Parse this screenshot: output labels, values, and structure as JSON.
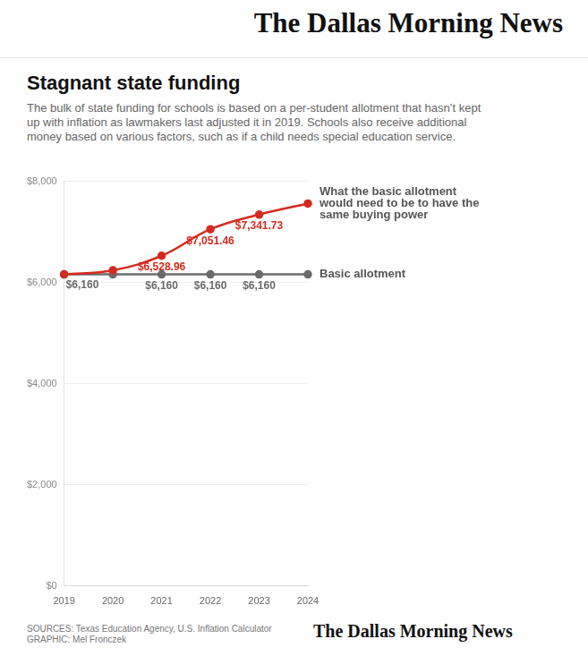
{
  "chart_data": {
    "type": "line",
    "brand": "The Dallas Morning News",
    "title": "Stagnant state funding",
    "subtitle": "The bulk of state funding for schools is based on a per-student allotment that hasn’t kept up with inflation as lawmakers last adjusted it in 2019. Schools also receive additional money based on various factors, such as if a child needs special education service.",
    "source": "SOURCES: Texas Education Agency, U.S. Inflation Calculator",
    "credit": "GRAPHIC: Mel Fronczek",
    "categories": [
      "2019",
      "2020",
      "2021",
      "2022",
      "2023",
      "2024"
    ],
    "series": [
      {
        "name": "What the basic allotment would need to be to have the same buying power",
        "color": "#d42a1f",
        "marker": "circle",
        "line_style": "solid",
        "values": [
          6160,
          6240,
          6528.96,
          7051.46,
          7341.73,
          7560
        ],
        "value_labels": [
          null,
          null,
          "$6,528.96",
          "$7,051.46",
          "$7,341.73",
          null
        ]
      },
      {
        "name": "Basic allotment",
        "color": "#6b6b6b",
        "marker": "circle",
        "line_style": "solid",
        "values": [
          6160,
          6160,
          6160,
          6160,
          6160,
          6160
        ],
        "value_labels": [
          "$6,160",
          null,
          "$6,160",
          "$6,160",
          "$6,160",
          null
        ]
      }
    ],
    "ylim": [
      0,
      8000
    ],
    "yticks": [
      {
        "value": 0,
        "label": "$0"
      },
      {
        "value": 2000,
        "label": "$2,000"
      },
      {
        "value": 4000,
        "label": "$4,000"
      },
      {
        "value": 6000,
        "label": "$6,000"
      },
      {
        "value": 8000,
        "label": "$8,000"
      }
    ],
    "grid": true,
    "data_labels": true
  }
}
